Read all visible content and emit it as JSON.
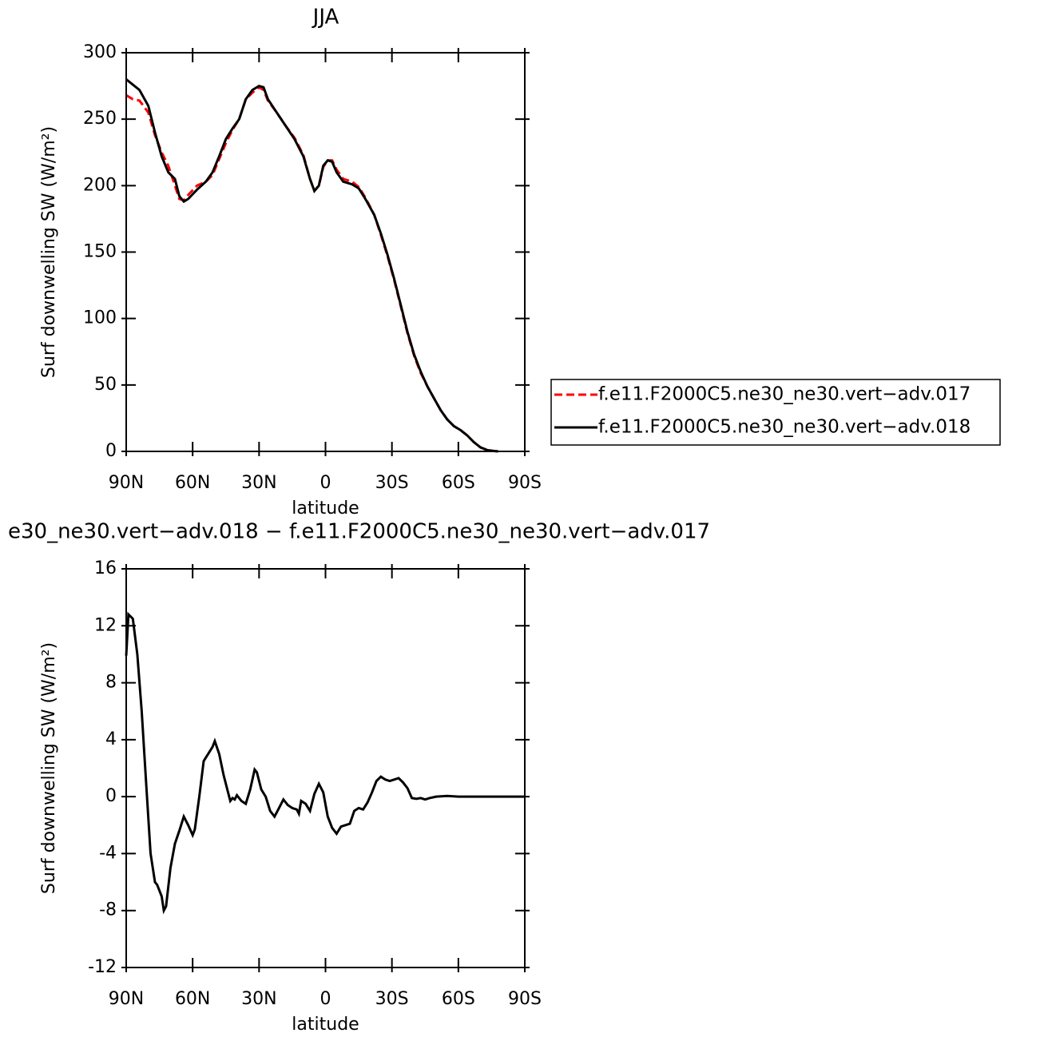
{
  "chart_data": [
    {
      "type": "line",
      "title": "JJA",
      "xlabel": "latitude",
      "ylabel": "Surf downwelling SW (W/m²)",
      "x": [
        90,
        87,
        84,
        80,
        77,
        74,
        71,
        68,
        66,
        64,
        62,
        58,
        54,
        51,
        48,
        45,
        42,
        39,
        36,
        33,
        30,
        28,
        26,
        22,
        18,
        14,
        10,
        7,
        5,
        3,
        1,
        -1,
        -3,
        -5,
        -8,
        -12,
        -15,
        -18,
        -22,
        -25,
        -28,
        -31,
        -34,
        -37,
        -40,
        -43,
        -46,
        -49,
        -52,
        -55,
        -58,
        -61,
        -64,
        -67,
        -70,
        -73,
        -76,
        -78
      ],
      "series": [
        {
          "name": "f.e11.F2000C5.ne30_ne30.vert−adv.017",
          "color": "#ff0000",
          "dash": true,
          "values": [
            268,
            265,
            264,
            255,
            238,
            225,
            215,
            200,
            190,
            189,
            193,
            200,
            203,
            208,
            220,
            232,
            242,
            250,
            265,
            270,
            274,
            272,
            264,
            255,
            245,
            236,
            223,
            205,
            196,
            200,
            214,
            219,
            219,
            212,
            205,
            203,
            199,
            191,
            178,
            163,
            147,
            129,
            109,
            89,
            72,
            59,
            49,
            40,
            31,
            24,
            19,
            16,
            12,
            7,
            3,
            1,
            0.3,
            0
          ]
        },
        {
          "name": "f.e11.F2000C5.ne30_ne30.vert−adv.018",
          "color": "#000000",
          "dash": false,
          "values": [
            280,
            276,
            272,
            260,
            240,
            222,
            210,
            205,
            192,
            188,
            190,
            197,
            203,
            210,
            222,
            235,
            243,
            250,
            265,
            272,
            275,
            274,
            265,
            255,
            245,
            235,
            222,
            205,
            196,
            200,
            215,
            219,
            218,
            210,
            203,
            201,
            198,
            190,
            178,
            164,
            148,
            130,
            110,
            90,
            73,
            60,
            49,
            40,
            31,
            24,
            19,
            16,
            12,
            7,
            3,
            1,
            0.3,
            0
          ]
        }
      ],
      "xlim": [
        90,
        -90
      ],
      "xticks": [
        {
          "value": 90,
          "label": "90N"
        },
        {
          "value": 60,
          "label": "60N"
        },
        {
          "value": 30,
          "label": "30N"
        },
        0,
        {
          "value": -30,
          "label": "30S"
        },
        {
          "value": -60,
          "label": "60S"
        },
        {
          "value": -90,
          "label": "90S"
        }
      ],
      "ylim": [
        0,
        300
      ],
      "yticks": [
        0,
        50,
        100,
        150,
        200,
        250,
        300
      ],
      "legend": "right"
    },
    {
      "type": "line",
      "title": "e30_ne30.vert−adv.018 − f.e11.F2000C5.ne30_ne30.vert−adv.017",
      "xlabel": "latitude",
      "ylabel": "Surf downwelling SW (W/m²)",
      "x": [
        90,
        89,
        87,
        85,
        83,
        81,
        79,
        77,
        76,
        74,
        73,
        72,
        70,
        68,
        66,
        64,
        62,
        60,
        59,
        57,
        55,
        53,
        51,
        50,
        48,
        46,
        44,
        43,
        42,
        41,
        40,
        38,
        36,
        34,
        32,
        31,
        29,
        27,
        25,
        23,
        21,
        19,
        17,
        15,
        13,
        12,
        11,
        9,
        7,
        5,
        3,
        1,
        -1,
        -3,
        -5,
        -7,
        -9,
        -11,
        -13,
        -15,
        -17,
        -19,
        -21,
        -23,
        -25,
        -27,
        -29,
        -31,
        -33,
        -35,
        -37,
        -39,
        -41,
        -43,
        -45,
        -47,
        -50,
        -55,
        -60,
        -65,
        -70,
        -75,
        -80,
        -90
      ],
      "series": [
        {
          "color": "#000000",
          "dash": false,
          "values": [
            9.9,
            12.8,
            12.5,
            10,
            6,
            1,
            -4,
            -6,
            -6.2,
            -7,
            -8,
            -7.7,
            -5,
            -3.3,
            -2.4,
            -1.4,
            -2,
            -2.7,
            -2.3,
            0,
            2.5,
            3,
            3.5,
            3.9,
            3,
            1.5,
            0.3,
            -0.3,
            -0.1,
            -0.2,
            0.1,
            -0.3,
            -0.5,
            0.5,
            1.9,
            1.7,
            0.5,
            0,
            -1,
            -1.4,
            -0.8,
            -0.2,
            -0.6,
            -0.8,
            -0.9,
            -1.2,
            -0.3,
            -0.5,
            -1,
            0.2,
            0.9,
            0.3,
            -1.4,
            -2.2,
            -2.6,
            -2.1,
            -2,
            -1.9,
            -1,
            -0.8,
            -0.9,
            -0.4,
            0.3,
            1.1,
            1.4,
            1.2,
            1.1,
            1.2,
            1.3,
            1,
            0.6,
            -0.1,
            -0.15,
            -0.1,
            -0.2,
            -0.1,
            0,
            0.05,
            0,
            0,
            0,
            0,
            0,
            0
          ]
        }
      ],
      "xlim": [
        90,
        -90
      ],
      "xticks": [
        {
          "value": 90,
          "label": "90N"
        },
        {
          "value": 60,
          "label": "60N"
        },
        {
          "value": 30,
          "label": "30N"
        },
        0,
        {
          "value": -30,
          "label": "30S"
        },
        {
          "value": -60,
          "label": "60S"
        },
        {
          "value": -90,
          "label": "90S"
        }
      ],
      "ylim": [
        -12,
        16
      ],
      "yticks": [
        -12,
        -8,
        -4,
        0,
        4,
        8,
        12,
        16
      ]
    }
  ]
}
